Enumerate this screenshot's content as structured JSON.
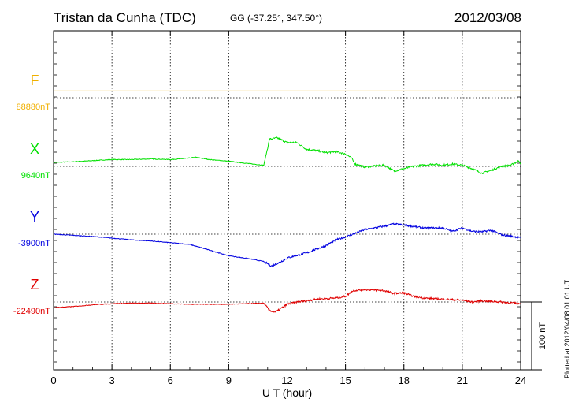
{
  "header": {
    "station": "Tristan da Cunha (TDC)",
    "coords": "GG (-37.25°, 347.50°)",
    "date": "2012/03/08",
    "plotted": "Plotted at 2012/04/08 01:01  UT"
  },
  "chart_data": {
    "type": "line",
    "xlabel": "U T (hour)",
    "xlim": [
      0,
      24
    ],
    "xticks": [
      "0",
      "3",
      "6",
      "9",
      "12",
      "15",
      "18",
      "21",
      "24"
    ],
    "scale_label": "100 nT",
    "scale_nT": 100,
    "series": [
      {
        "name": "F",
        "baseline": "88880nT",
        "color": "#f0b000",
        "points": [
          [
            0,
            12
          ],
          [
            24,
            12
          ]
        ]
      },
      {
        "name": "X",
        "baseline": "9640nT",
        "color": "#00e000",
        "points": [
          [
            0,
            7
          ],
          [
            1,
            8
          ],
          [
            2,
            10
          ],
          [
            3,
            12
          ],
          [
            4,
            12
          ],
          [
            5,
            13
          ],
          [
            6,
            12
          ],
          [
            6.8,
            14
          ],
          [
            7.3,
            16
          ],
          [
            8,
            12
          ],
          [
            9,
            9
          ],
          [
            10,
            5
          ],
          [
            10.8,
            2
          ],
          [
            11.1,
            48
          ],
          [
            11.5,
            50
          ],
          [
            12,
            42
          ],
          [
            12.5,
            42
          ],
          [
            13,
            30
          ],
          [
            13.5,
            28
          ],
          [
            14,
            24
          ],
          [
            14.5,
            26
          ],
          [
            15,
            22
          ],
          [
            15.3,
            15
          ],
          [
            15.5,
            4
          ],
          [
            16,
            -1
          ],
          [
            17,
            2
          ],
          [
            17.5,
            -8
          ],
          [
            18,
            -4
          ],
          [
            18.5,
            0
          ],
          [
            19,
            2
          ],
          [
            19.5,
            4
          ],
          [
            20,
            2
          ],
          [
            20.5,
            4
          ],
          [
            21,
            2
          ],
          [
            21.5,
            -4
          ],
          [
            22,
            -12
          ],
          [
            22.5,
            -7
          ],
          [
            23,
            0
          ],
          [
            23.5,
            2
          ],
          [
            23.9,
            10
          ],
          [
            24,
            4
          ]
        ]
      },
      {
        "name": "Y",
        "baseline": "-3900nT",
        "color": "#0000e0",
        "points": [
          [
            0,
            0
          ],
          [
            1,
            -2
          ],
          [
            2,
            -4
          ],
          [
            3,
            -7
          ],
          [
            4,
            -10
          ],
          [
            5,
            -12
          ],
          [
            6,
            -15
          ],
          [
            7,
            -18
          ],
          [
            8,
            -28
          ],
          [
            9,
            -38
          ],
          [
            10,
            -43
          ],
          [
            10.8,
            -48
          ],
          [
            11.2,
            -56
          ],
          [
            11.6,
            -50
          ],
          [
            12,
            -42
          ],
          [
            13,
            -33
          ],
          [
            14,
            -20
          ],
          [
            14.5,
            -10
          ],
          [
            15,
            -5
          ],
          [
            16,
            8
          ],
          [
            17,
            14
          ],
          [
            17.5,
            18
          ],
          [
            18,
            16
          ],
          [
            19,
            11
          ],
          [
            20,
            11
          ],
          [
            20.5,
            5
          ],
          [
            21,
            11
          ],
          [
            21.5,
            5
          ],
          [
            22,
            4
          ],
          [
            22.5,
            7
          ],
          [
            23,
            -1
          ],
          [
            24,
            -6
          ]
        ]
      },
      {
        "name": "Z",
        "baseline": "-22490nT",
        "color": "#e00000",
        "points": [
          [
            0,
            -10
          ],
          [
            1,
            -8
          ],
          [
            2,
            -5
          ],
          [
            3,
            -3
          ],
          [
            4,
            -2
          ],
          [
            5,
            -2
          ],
          [
            6,
            -3
          ],
          [
            7,
            -4
          ],
          [
            8,
            -4
          ],
          [
            9,
            -4
          ],
          [
            10,
            -3
          ],
          [
            10.8,
            -2
          ],
          [
            11.1,
            -15
          ],
          [
            11.4,
            -18
          ],
          [
            12,
            -4
          ],
          [
            12.5,
            0
          ],
          [
            13,
            2
          ],
          [
            13.5,
            5
          ],
          [
            14,
            6
          ],
          [
            14.5,
            7
          ],
          [
            15,
            10
          ],
          [
            15.4,
            20
          ],
          [
            16,
            22
          ],
          [
            17,
            20
          ],
          [
            17.5,
            15
          ],
          [
            18,
            16
          ],
          [
            18.5,
            10
          ],
          [
            19,
            7
          ],
          [
            20,
            5
          ],
          [
            21,
            3
          ],
          [
            21.5,
            0
          ],
          [
            22,
            2
          ],
          [
            23,
            0
          ],
          [
            24,
            -3
          ]
        ]
      }
    ]
  }
}
